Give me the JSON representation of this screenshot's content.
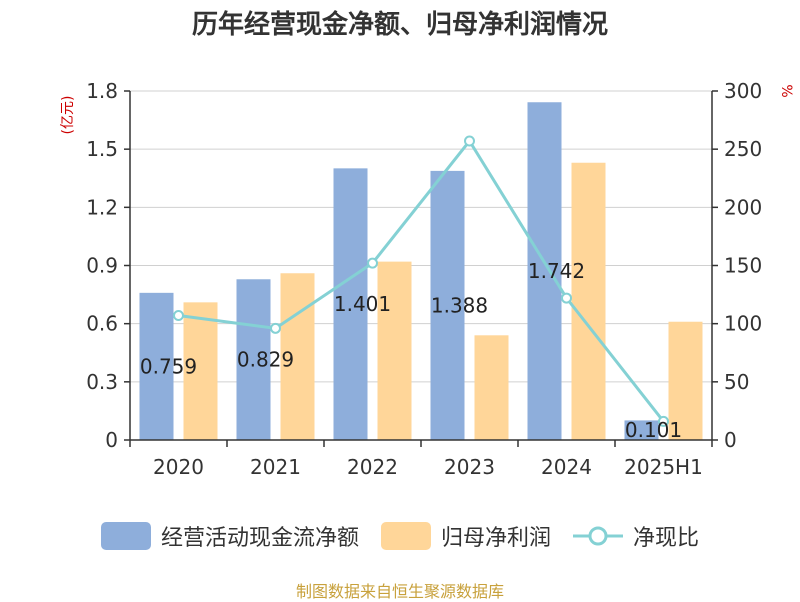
{
  "chart_data": {
    "type": "bar+line",
    "title": "历年经营现金净额、归母净利润情况",
    "categories": [
      "2020",
      "2021",
      "2022",
      "2023",
      "2024",
      "2025H1"
    ],
    "series": [
      {
        "name": "经营活动现金流净额",
        "type": "bar",
        "axis": "left",
        "color": "#8eaedb",
        "values": [
          0.759,
          0.829,
          1.401,
          1.388,
          1.742,
          0.101
        ],
        "data_labels": [
          "0.759",
          "0.829",
          "1.401",
          "1.388",
          "1.742",
          "0.101"
        ]
      },
      {
        "name": "归母净利润",
        "type": "bar",
        "axis": "left",
        "color": "#ffd699",
        "values": [
          0.71,
          0.86,
          0.92,
          0.54,
          1.43,
          0.61
        ]
      },
      {
        "name": "净现比",
        "type": "line",
        "axis": "right",
        "color": "#84d1d4",
        "values": [
          107,
          96,
          152,
          257,
          122,
          16
        ]
      }
    ],
    "left_axis": {
      "unit_label": "(亿元)",
      "ylim": [
        0,
        1.8
      ],
      "ticks": [
        0,
        0.3,
        0.6,
        0.9,
        1.2,
        1.5,
        1.8
      ],
      "tick_labels": [
        "0",
        "0.3",
        "0.6",
        "0.9",
        "1.2",
        "1.5",
        "1.8"
      ]
    },
    "right_axis": {
      "unit_label": "%",
      "ylim": [
        0,
        300
      ],
      "ticks": [
        0,
        50,
        100,
        150,
        200,
        250,
        300
      ],
      "tick_labels": [
        "0",
        "50",
        "100",
        "150",
        "200",
        "250",
        "300"
      ]
    },
    "grid": true,
    "legend_position": "bottom"
  },
  "footer": {
    "source_text": "制图数据来自恒生聚源数据库"
  }
}
